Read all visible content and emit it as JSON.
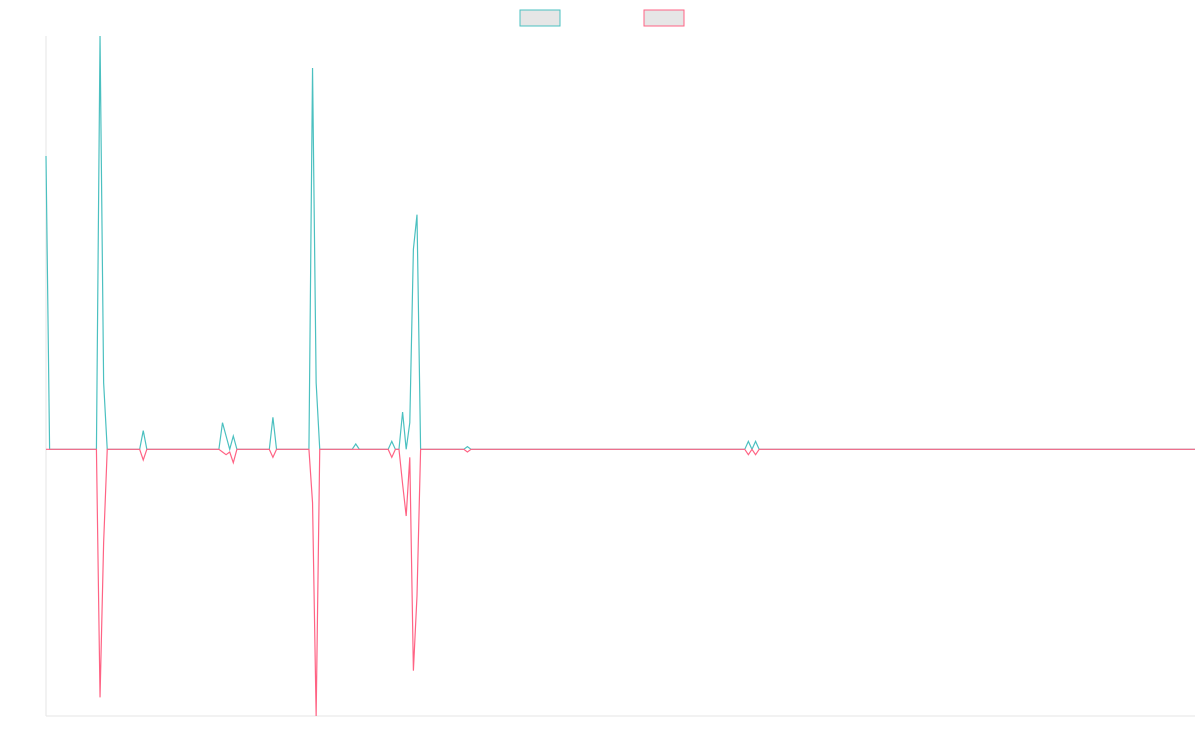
{
  "chart_data": {
    "type": "line",
    "title": "",
    "xlabel": "",
    "ylabel": "",
    "grid": false,
    "legend_position": "top-center",
    "x_range": [
      0,
      319
    ],
    "ylim": [
      -100,
      155
    ],
    "series": [
      {
        "color": "#4bc0c0",
        "fill": "#e6e6e6",
        "points": [
          [
            0,
            110
          ],
          [
            1,
            0
          ],
          [
            14,
            0
          ],
          [
            15,
            155
          ],
          [
            16,
            25
          ],
          [
            17,
            0
          ],
          [
            26,
            0
          ],
          [
            27,
            7
          ],
          [
            28,
            0
          ],
          [
            48,
            0
          ],
          [
            49,
            10
          ],
          [
            50,
            5
          ],
          [
            51,
            0
          ],
          [
            52,
            5
          ],
          [
            53,
            0
          ],
          [
            62,
            0
          ],
          [
            63,
            12
          ],
          [
            64,
            0
          ],
          [
            73,
            0
          ],
          [
            74,
            143
          ],
          [
            75,
            25
          ],
          [
            76,
            0
          ],
          [
            85,
            0
          ],
          [
            86,
            2
          ],
          [
            87,
            0
          ],
          [
            95,
            0
          ],
          [
            96,
            3
          ],
          [
            97,
            0
          ],
          [
            98,
            0
          ],
          [
            99,
            14
          ],
          [
            100,
            0
          ],
          [
            101,
            10
          ],
          [
            102,
            75
          ],
          [
            103,
            88
          ],
          [
            104,
            0
          ],
          [
            116,
            0
          ],
          [
            117,
            1
          ],
          [
            118,
            0
          ],
          [
            194,
            0
          ],
          [
            195,
            3
          ],
          [
            196,
            0
          ],
          [
            197,
            3
          ],
          [
            198,
            0
          ],
          [
            319,
            0
          ]
        ]
      },
      {
        "color": "#ff6384",
        "fill": "#e6e6e6",
        "points": [
          [
            0,
            0
          ],
          [
            14,
            0
          ],
          [
            15,
            -93
          ],
          [
            16,
            -35
          ],
          [
            17,
            0
          ],
          [
            26,
            0
          ],
          [
            27,
            -4
          ],
          [
            28,
            0
          ],
          [
            48,
            0
          ],
          [
            49,
            -1
          ],
          [
            50,
            -2
          ],
          [
            51,
            -1
          ],
          [
            52,
            -5
          ],
          [
            53,
            0
          ],
          [
            62,
            0
          ],
          [
            63,
            -3
          ],
          [
            64,
            0
          ],
          [
            73,
            0
          ],
          [
            74,
            -20
          ],
          [
            75,
            -100
          ],
          [
            76,
            0
          ],
          [
            95,
            0
          ],
          [
            96,
            -3
          ],
          [
            97,
            0
          ],
          [
            98,
            0
          ],
          [
            99,
            -13
          ],
          [
            100,
            -25
          ],
          [
            101,
            -3
          ],
          [
            102,
            -83
          ],
          [
            103,
            -55
          ],
          [
            104,
            0
          ],
          [
            116,
            0
          ],
          [
            117,
            -1
          ],
          [
            118,
            0
          ],
          [
            194,
            0
          ],
          [
            195,
            -2
          ],
          [
            196,
            0
          ],
          [
            197,
            -2
          ],
          [
            198,
            0
          ],
          [
            319,
            0
          ]
        ]
      }
    ]
  }
}
